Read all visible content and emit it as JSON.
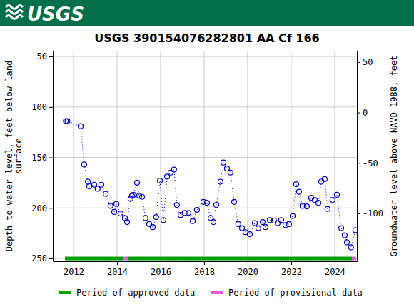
{
  "chart_data": {
    "type": "line",
    "logo_text": "USGS",
    "title": "USGS 390154076282801 AA Cf 166",
    "y_label": [
      "Depth to water level, feet below land",
      "surface"
    ],
    "y2_label": "Groundwater level above NAVD 1988, feet",
    "xlim": [
      2011.05,
      2025.02
    ],
    "xticks": [
      2012,
      2014,
      2016,
      2018,
      2020,
      2022,
      2024
    ],
    "ylim": [
      252.8,
      44.3
    ],
    "yticks": [
      50,
      100,
      150,
      200,
      250
    ],
    "y2lim": [
      -147.3,
      61.2
    ],
    "y2ticks": [
      50,
      0,
      -50,
      -100
    ],
    "grid": true,
    "legend": "bottom",
    "x": [
      2011.65,
      2011.72,
      2012.33,
      2012.49,
      2012.66,
      2012.72,
      2012.95,
      2013.11,
      2013.28,
      2013.48,
      2013.7,
      2013.87,
      2013.97,
      2014.16,
      2014.36,
      2014.46,
      2014.62,
      2014.69,
      2014.75,
      2014.92,
      2015.02,
      2015.15,
      2015.31,
      2015.48,
      2015.64,
      2015.8,
      2015.97,
      2016.13,
      2016.3,
      2016.46,
      2016.62,
      2016.75,
      2016.92,
      2017.11,
      2017.28,
      2017.48,
      2017.67,
      2017.97,
      2018.13,
      2018.3,
      2018.43,
      2018.56,
      2018.75,
      2018.89,
      2019.05,
      2019.21,
      2019.38,
      2019.57,
      2019.74,
      2019.9,
      2020.1,
      2020.33,
      2020.49,
      2020.69,
      2020.82,
      2021.02,
      2021.21,
      2021.38,
      2021.54,
      2021.74,
      2021.9,
      2022.07,
      2022.23,
      2022.36,
      2022.52,
      2022.72,
      2022.92,
      2023.08,
      2023.25,
      2023.38,
      2023.54,
      2023.67,
      2023.9,
      2024.1,
      2024.3,
      2024.46,
      2024.56,
      2024.75,
      2024.95
    ],
    "series": [
      {
        "color": "#0000cc",
        "marker": "circle-open",
        "line_style": "dotted",
        "values": [
          114,
          114,
          119,
          157,
          174,
          178.6,
          177,
          181,
          177,
          186,
          198,
          204,
          196,
          205.5,
          210,
          214,
          191,
          188,
          187,
          175,
          188,
          189,
          210,
          216,
          219,
          209,
          173,
          212,
          169,
          165,
          162,
          197,
          207,
          205,
          205,
          213,
          202,
          194,
          195,
          210,
          214,
          197,
          174,
          155,
          161,
          165,
          194,
          216,
          220,
          224,
          226,
          215,
          220,
          214,
          219,
          212,
          212.5,
          215,
          212,
          217,
          216,
          208,
          176.5,
          184,
          198,
          198.5,
          190,
          192,
          195,
          174,
          171.5,
          201,
          192,
          187,
          220,
          227,
          234,
          239,
          222
        ]
      }
    ],
    "period_level": 250,
    "periods": [
      {
        "name": "Period of approved data",
        "color": "#00a000",
        "ranges": [
          [
            2011.61,
            2014.3
          ],
          [
            2014.52,
            2024.79
          ]
        ]
      },
      {
        "name": "Period of provisional data",
        "color": "#ee55dd",
        "ranges": [
          [
            2014.3,
            2014.52
          ],
          [
            2024.79,
            2024.98
          ]
        ]
      }
    ]
  }
}
